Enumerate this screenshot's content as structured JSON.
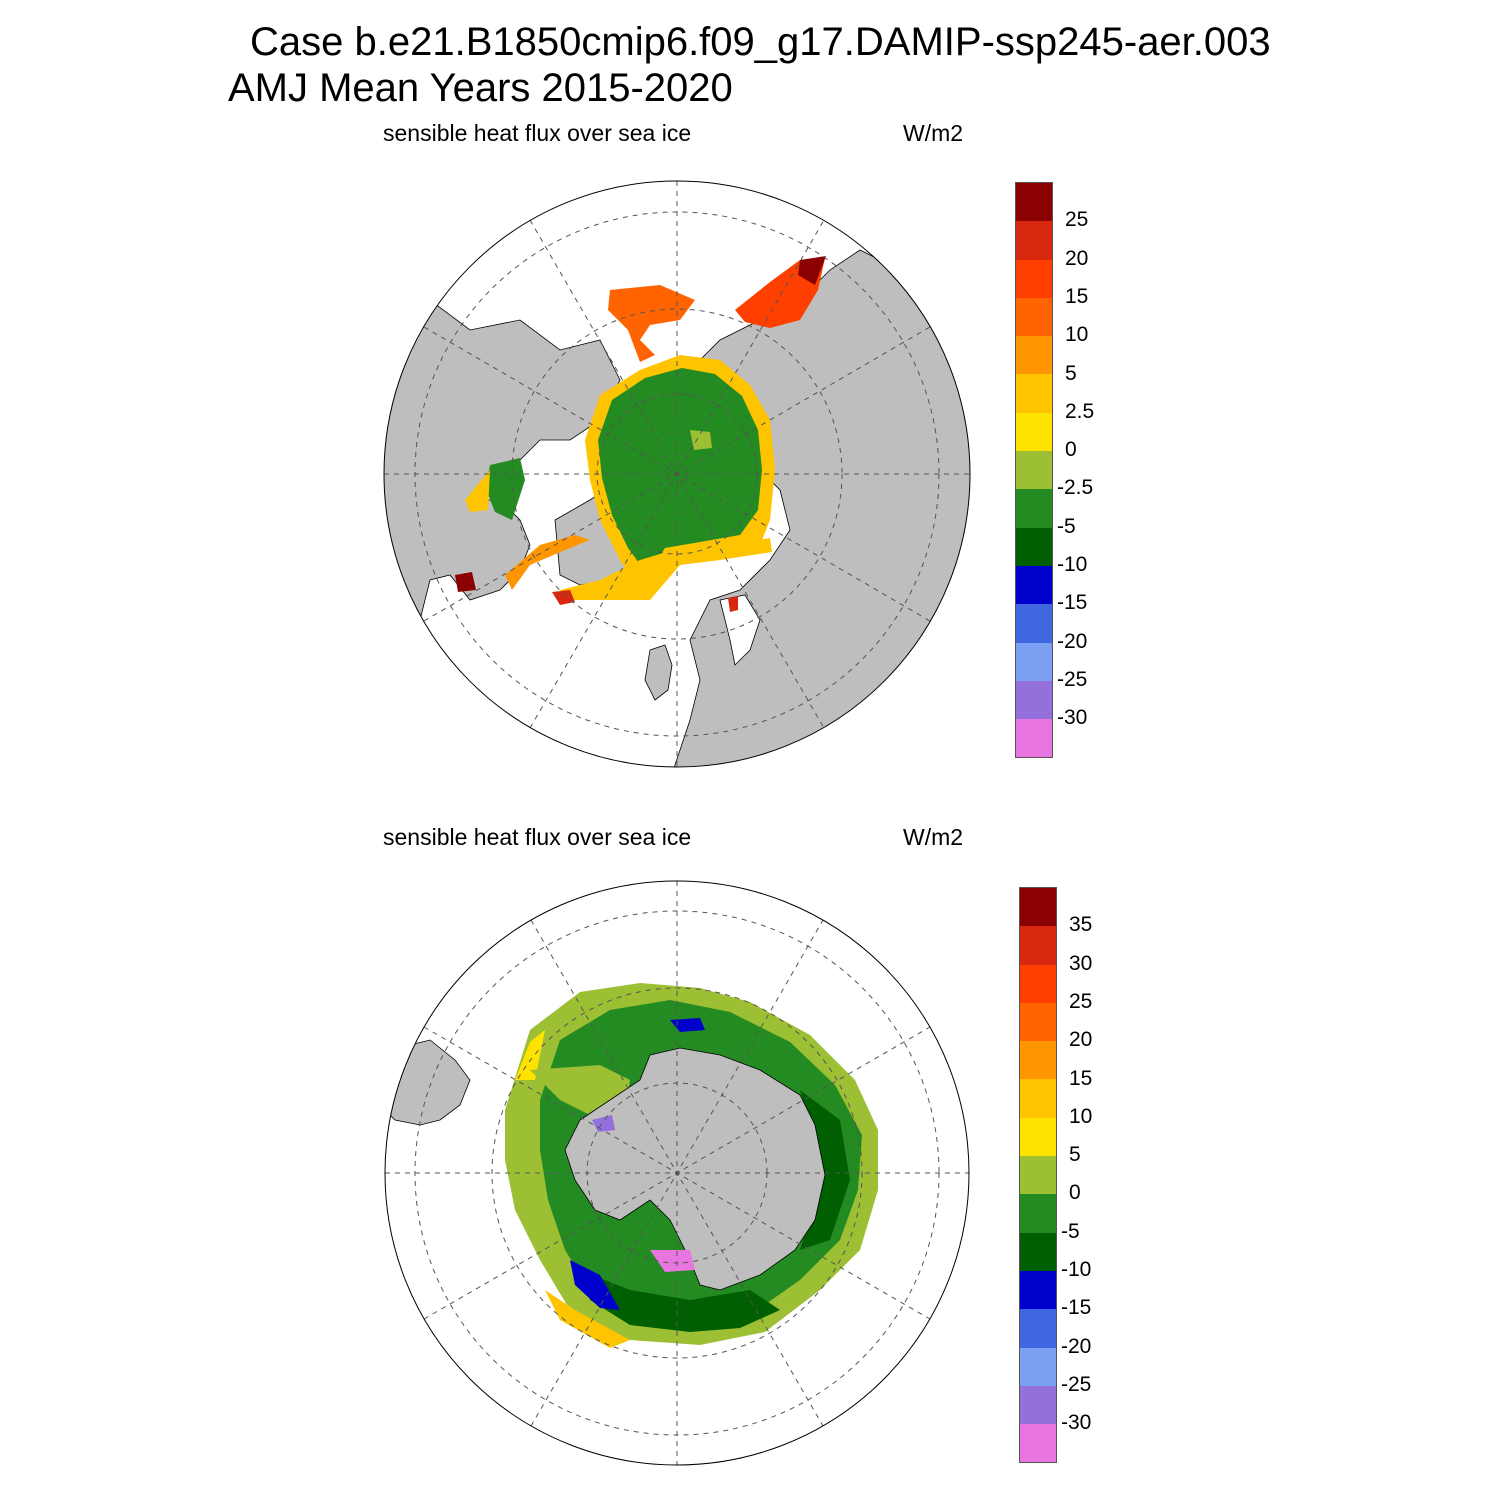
{
  "header": {
    "title_line1": "Case b.e21.B1850cmip6.f09_g17.DAMIP-ssp245-aer.003",
    "title_line2": "AMJ Mean   Years 2015-2020"
  },
  "panels": [
    {
      "id": "north",
      "left_label": "sensible heat flux over sea ice",
      "right_label": "W/m2",
      "hemisphere": "Arctic",
      "colorbar_labels": [
        "25",
        "20",
        "15",
        "10",
        "5",
        "2.5",
        "0",
        "-2.5",
        "-5",
        "-10",
        "-15",
        "-20",
        "-25",
        "-30"
      ]
    },
    {
      "id": "south",
      "left_label": "sensible heat flux over sea ice",
      "right_label": "W/m2",
      "hemisphere": "Antarctic",
      "colorbar_labels": [
        "35",
        "30",
        "25",
        "20",
        "15",
        "10",
        "5",
        "0",
        "-5",
        "-10",
        "-15",
        "-20",
        "-25",
        "-30"
      ]
    }
  ],
  "colorbar_colors": [
    "#8b0000",
    "#d7280f",
    "#ff3f00",
    "#ff6400",
    "#ff9600",
    "#ffc400",
    "#ffe300",
    "#9cbf34",
    "#238b22",
    "#005f00",
    "#0000cd",
    "#3f68e0",
    "#7b9ff2",
    "#9370db",
    "#e875e0"
  ],
  "map_colors": {
    "land": "#bebebe",
    "ocean": "#ffffff",
    "gridlines": "#555555"
  }
}
